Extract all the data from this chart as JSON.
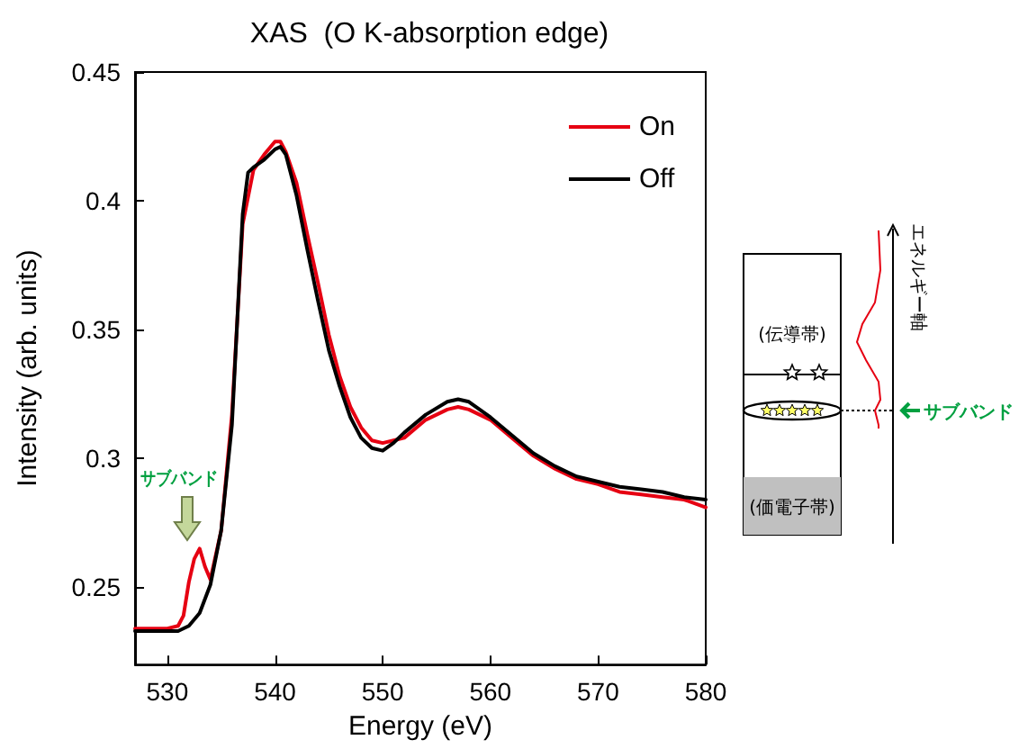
{
  "chart_data": {
    "type": "line",
    "title": "XAS  (O K-absorption edge)",
    "xlabel": "Energy (eV)",
    "ylabel": "Intensity (arb. units)",
    "xlim": [
      527,
      580
    ],
    "xticks": [
      530,
      540,
      550,
      560,
      570,
      580
    ],
    "ylim": [
      0.22,
      0.45
    ],
    "yticks": [
      0.25,
      0.3,
      0.35,
      0.4,
      0.45
    ],
    "grid": false,
    "legend": "top right",
    "series": [
      {
        "name": "On",
        "color": "#e60012",
        "x": [
          527,
          530,
          531,
          531.5,
          532,
          532.5,
          533,
          533.5,
          534,
          535,
          536,
          537,
          538,
          539,
          540,
          540.5,
          541,
          542,
          543,
          544,
          545,
          546,
          547,
          548,
          549,
          550,
          551,
          552,
          554,
          556,
          557,
          558,
          560,
          562,
          564,
          566,
          568,
          570,
          572,
          574,
          576,
          578,
          580
        ],
        "values": [
          0.234,
          0.234,
          0.235,
          0.239,
          0.252,
          0.261,
          0.265,
          0.258,
          0.253,
          0.272,
          0.317,
          0.391,
          0.412,
          0.418,
          0.423,
          0.423,
          0.419,
          0.407,
          0.387,
          0.368,
          0.348,
          0.332,
          0.32,
          0.312,
          0.307,
          0.306,
          0.307,
          0.308,
          0.315,
          0.319,
          0.32,
          0.319,
          0.315,
          0.308,
          0.301,
          0.296,
          0.292,
          0.29,
          0.287,
          0.286,
          0.285,
          0.284,
          0.281
        ]
      },
      {
        "name": "Off",
        "color": "#000000",
        "x": [
          527,
          530,
          531,
          532,
          533,
          534,
          535,
          536,
          537,
          537.5,
          538,
          539,
          540,
          540.5,
          541,
          542,
          543,
          544,
          545,
          546,
          547,
          548,
          549,
          550,
          551,
          552,
          554,
          556,
          557,
          558,
          560,
          562,
          564,
          566,
          568,
          570,
          572,
          574,
          576,
          578,
          580
        ],
        "values": [
          0.233,
          0.233,
          0.233,
          0.235,
          0.24,
          0.251,
          0.272,
          0.313,
          0.395,
          0.411,
          0.413,
          0.416,
          0.42,
          0.421,
          0.418,
          0.402,
          0.381,
          0.361,
          0.342,
          0.328,
          0.316,
          0.308,
          0.304,
          0.303,
          0.306,
          0.31,
          0.317,
          0.322,
          0.323,
          0.322,
          0.316,
          0.309,
          0.302,
          0.297,
          0.293,
          0.291,
          0.289,
          0.288,
          0.287,
          0.285,
          0.284
        ]
      }
    ],
    "annotations": [
      "サブバンド",
      "(伝導帯)",
      "(価電子帯)",
      "エネルギー軸",
      "サブバンド"
    ]
  }
}
